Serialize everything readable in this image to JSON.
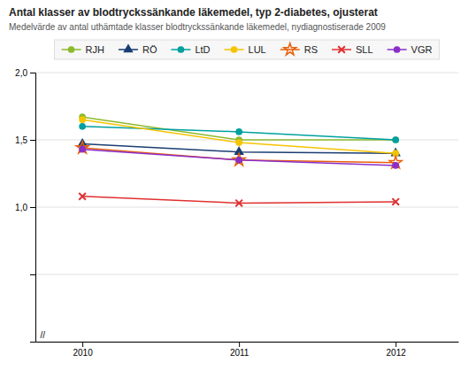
{
  "chart_data": {
    "type": "line",
    "title": "Antal klasser av blodtryckssänkande läkemedel, typ 2-diabetes, ojusterat",
    "subtitle": "Medelvärde av antal uthämtade klasser blodtryckssänkande läkemedel, nydiagnostiserade 2009",
    "x": [
      2010,
      2011,
      2012
    ],
    "xlim": [
      2009.7,
      2012.4
    ],
    "xticks": [
      2010,
      2011,
      2012
    ],
    "ylim": [
      0,
      2.0
    ],
    "yticks": [
      {
        "value": 0,
        "label": null
      },
      {
        "value": 0.5,
        "label": null
      },
      {
        "value": 1.0,
        "label": "1,0"
      },
      {
        "value": 1.5,
        "label": "1,5"
      },
      {
        "value": 2.0,
        "label": "2,0"
      }
    ],
    "grid": true,
    "legend": "top",
    "series": [
      {
        "name": "RJH",
        "color": "#8db92e",
        "marker": "circle",
        "values": [
          1.67,
          1.5,
          1.5
        ]
      },
      {
        "name": "RÖ",
        "color": "#1a3e72",
        "marker": "triangle",
        "values": [
          1.47,
          1.41,
          1.4
        ]
      },
      {
        "name": "LtD",
        "color": "#00a0a0",
        "marker": "circle",
        "values": [
          1.6,
          1.56,
          1.5
        ]
      },
      {
        "name": "LUL",
        "color": "#f5c400",
        "marker": "circle",
        "values": [
          1.65,
          1.48,
          1.4
        ]
      },
      {
        "name": "RS",
        "color": "#e8600a",
        "marker": "star",
        "values": [
          1.44,
          1.35,
          1.33
        ]
      },
      {
        "name": "SLL",
        "color": "#e03030",
        "marker": "x",
        "values": [
          1.08,
          1.03,
          1.04
        ]
      },
      {
        "name": "VGR",
        "color": "#8b2fc9",
        "marker": "circle",
        "values": [
          1.43,
          1.35,
          1.31
        ]
      }
    ],
    "annotations": [
      {
        "text": "//",
        "x": 2009.72,
        "y": 0.01
      }
    ]
  }
}
